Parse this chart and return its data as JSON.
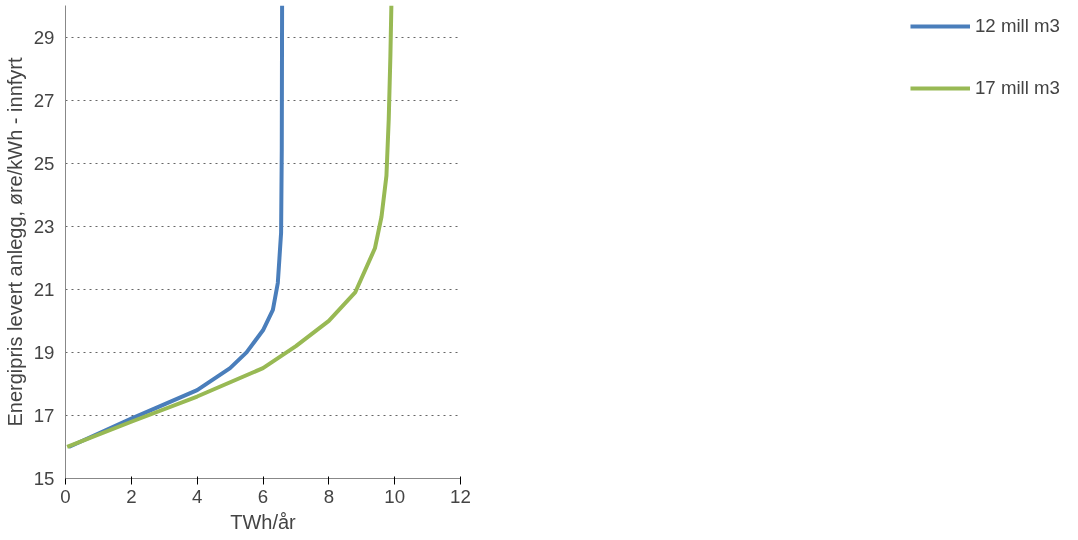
{
  "chart_data": {
    "type": "line",
    "xlabel": "TWh/år",
    "ylabel": "Energipris levert anlegg, øre/kWh - innfyrt",
    "xlim": [
      0,
      12
    ],
    "xticks": [
      0,
      2,
      4,
      6,
      8,
      10,
      12
    ],
    "ylim": [
      15,
      30
    ],
    "yticks": [
      15,
      17,
      19,
      21,
      23,
      25,
      27,
      29
    ],
    "grid": "y",
    "legend": "right",
    "marker": "none",
    "line_style": "solid",
    "series": [
      {
        "name": "12 mill m3",
        "color": "#4a7ebb",
        "x": [
          0.1,
          2,
          4,
          5,
          5.5,
          6,
          6.3,
          6.45,
          6.5,
          6.55,
          6.57,
          6.58
        ],
        "values": [
          16.0,
          16.9,
          17.8,
          18.5,
          19.0,
          19.7,
          20.35,
          21.2,
          22.0,
          22.8,
          25.4,
          30
        ]
      },
      {
        "name": "17 mill m3",
        "color": "#98b954",
        "x": [
          0.05,
          2,
          4,
          6,
          7,
          8,
          8.8,
          9.4,
          9.6,
          9.75,
          9.82,
          9.87,
          9.9
        ],
        "values": [
          16.0,
          16.8,
          17.6,
          18.5,
          19.2,
          20.0,
          20.9,
          22.3,
          23.3,
          24.6,
          26.4,
          28.4,
          30
        ]
      }
    ]
  }
}
